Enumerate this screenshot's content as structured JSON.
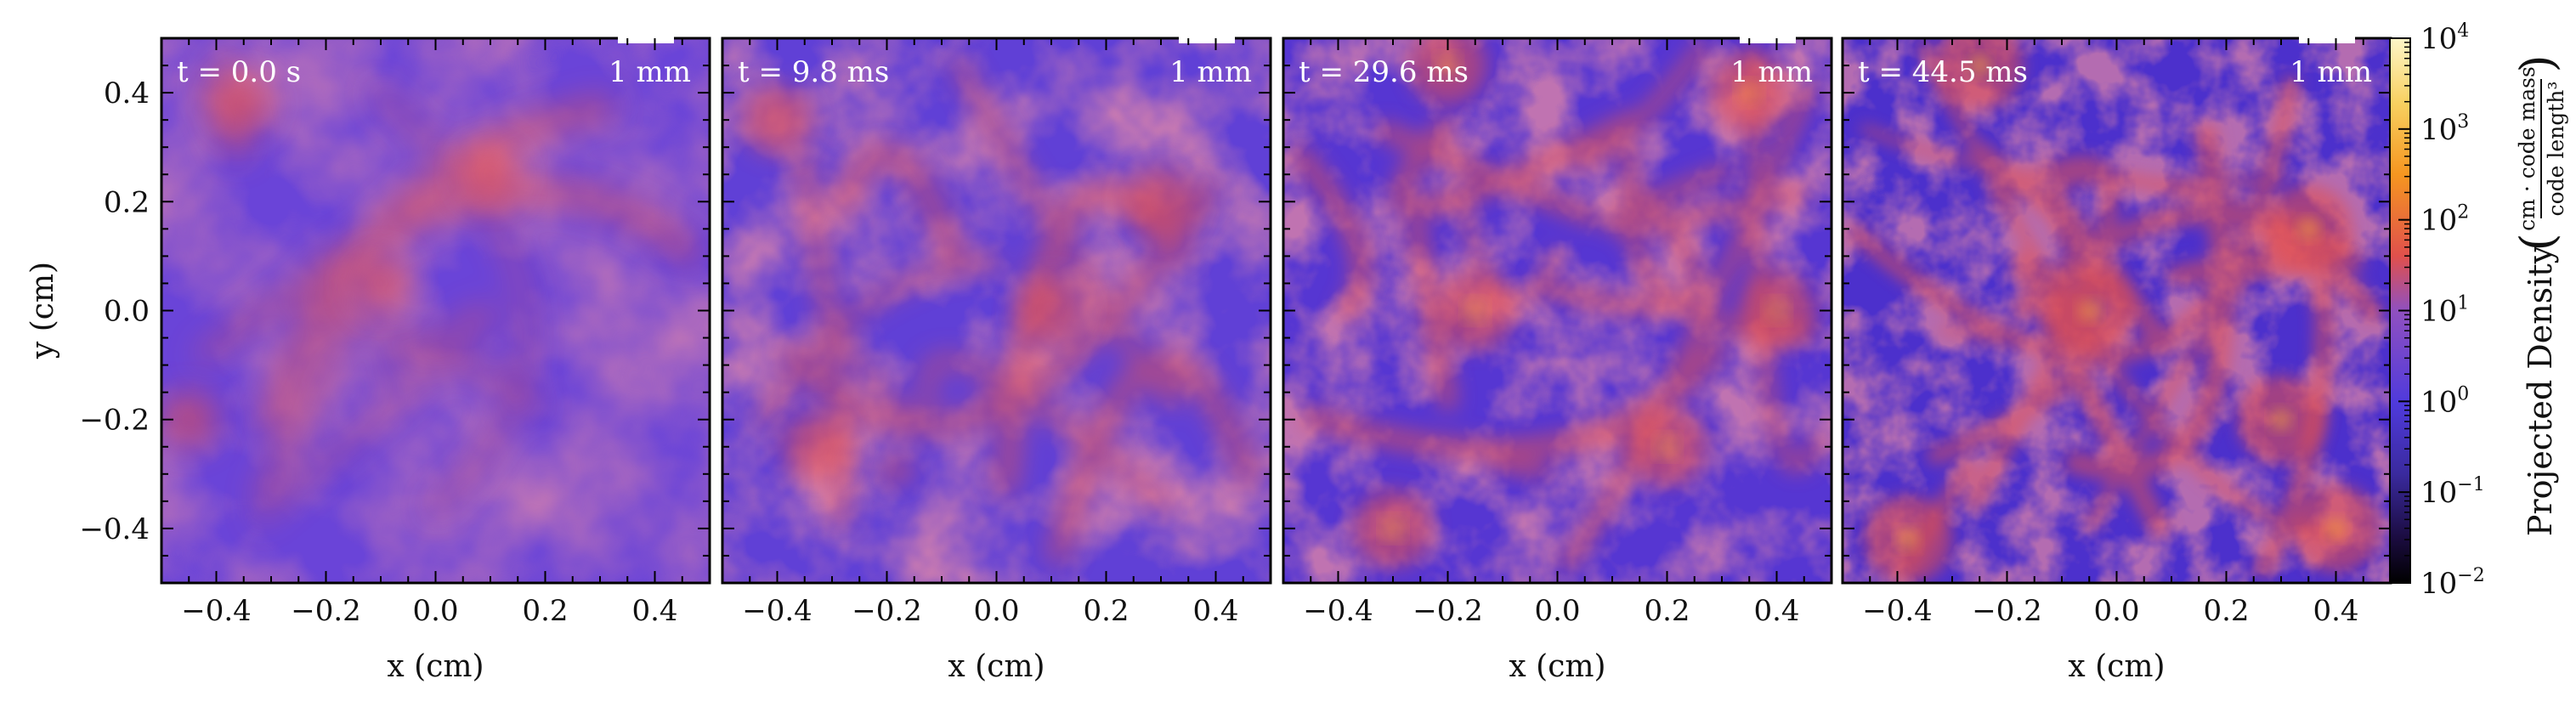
{
  "chart_data": {
    "type": "heatmap",
    "title": "",
    "panels": [
      {
        "time_label": "t = 0.0 s",
        "scale_bar_label": "1 mm",
        "dense_spots": [
          [
            -0.35,
            0.38
          ],
          [
            -0.45,
            -0.2
          ],
          [
            0.1,
            0.25
          ],
          [
            -0.1,
            0.05
          ]
        ]
      },
      {
        "time_label": "t = 9.8 ms",
        "scale_bar_label": "1 mm",
        "dense_spots": [
          [
            -0.33,
            -0.25
          ],
          [
            -0.4,
            0.35
          ],
          [
            0.3,
            0.2
          ],
          [
            0.1,
            0.0
          ]
        ]
      },
      {
        "time_label": "t = 29.6 ms",
        "scale_bar_label": "1 mm",
        "dense_spots": [
          [
            -0.3,
            -0.4
          ],
          [
            0.4,
            0.0
          ],
          [
            -0.15,
            0.0
          ],
          [
            -0.2,
            0.45
          ],
          [
            0.35,
            0.4
          ],
          [
            0.2,
            -0.25
          ]
        ]
      },
      {
        "time_label": "t = 44.5 ms",
        "scale_bar_label": "1 mm",
        "dense_spots": [
          [
            -0.38,
            -0.42
          ],
          [
            0.35,
            0.15
          ],
          [
            -0.05,
            0.0
          ],
          [
            0.4,
            -0.4
          ],
          [
            -0.25,
            0.45
          ],
          [
            0.3,
            -0.2
          ]
        ]
      }
    ],
    "xlabel": "x  (cm)",
    "ylabel": "y  (cm)",
    "xlim": [
      -0.5,
      0.5
    ],
    "ylim": [
      -0.5,
      0.5
    ],
    "x_ticks": [
      -0.4,
      -0.2,
      0.0,
      0.2,
      0.4
    ],
    "y_ticks": [
      -0.4,
      -0.2,
      0.0,
      0.2,
      0.4
    ],
    "x_tick_labels": [
      "−0.4",
      "−0.2",
      "0.0",
      "0.2",
      "0.4"
    ],
    "y_tick_labels": [
      "−0.4",
      "−0.2",
      "0.0",
      "0.2",
      "0.4"
    ],
    "colorbar": {
      "label": "Projected Density",
      "unit_numerator": "cm · code mass",
      "unit_denominator": "code length³",
      "scale": "log",
      "range": [
        0.01,
        10000
      ],
      "ticks": [
        {
          "value": 10000,
          "base": "10",
          "exp": "4"
        },
        {
          "value": 1000,
          "base": "10",
          "exp": "3"
        },
        {
          "value": 100,
          "base": "10",
          "exp": "2"
        },
        {
          "value": 10,
          "base": "10",
          "exp": "1"
        },
        {
          "value": 1,
          "base": "10",
          "exp": "0"
        },
        {
          "value": 0.1,
          "base": "10",
          "exp": "−1"
        },
        {
          "value": 0.01,
          "base": "10",
          "exp": "−2"
        }
      ],
      "colors": [
        "#000000",
        "#1a0b3e",
        "#3a2a9e",
        "#4f3adc",
        "#9050c0",
        "#e0504c",
        "#f59620",
        "#f8d060",
        "#fdf6c8"
      ]
    }
  }
}
